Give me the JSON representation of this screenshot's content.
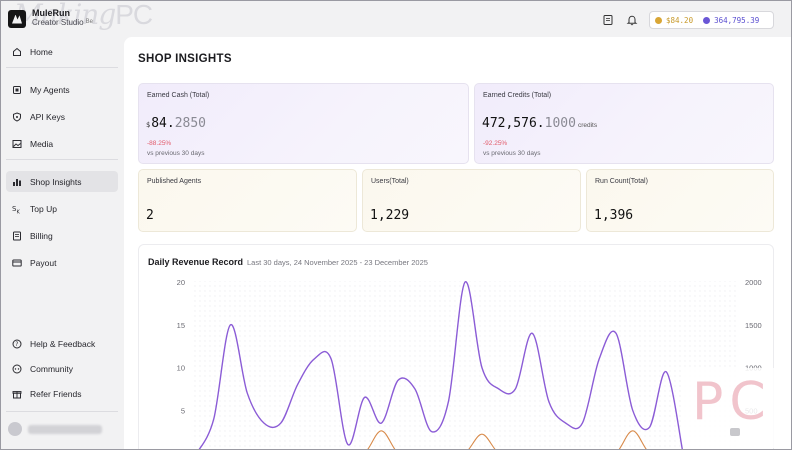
{
  "app": {
    "name": "MuleRun",
    "subtitle": "Creator Studio",
    "badge": "Be",
    "watermark_script": "Making",
    "watermark_bold": "PC"
  },
  "topbar": {
    "icons": [
      "document-icon",
      "bell-icon"
    ],
    "cash_balance": "$84.20",
    "credit_balance": "364,795.39"
  },
  "sidebar": {
    "items": [
      {
        "label": "Home",
        "icon": "home-icon"
      },
      {
        "label": "My Agents",
        "icon": "agent-icon"
      },
      {
        "label": "API Keys",
        "icon": "shield-icon"
      },
      {
        "label": "Media",
        "icon": "image-icon"
      },
      {
        "label": "Shop Insights",
        "icon": "bar-chart-icon",
        "active": true
      },
      {
        "label": "Top Up",
        "icon": "top-up-icon"
      },
      {
        "label": "Billing",
        "icon": "billing-icon"
      },
      {
        "label": "Payout",
        "icon": "payout-icon"
      }
    ],
    "footer_items": [
      {
        "label": "Help & Feedback",
        "icon": "help-icon"
      },
      {
        "label": "Community",
        "icon": "community-icon"
      },
      {
        "label": "Refer Friends",
        "icon": "gift-icon"
      }
    ]
  },
  "page": {
    "title": "SHOP INSIGHTS"
  },
  "cards": {
    "earned_cash": {
      "label": "Earned Cash (Total)",
      "currency": "$",
      "value_main": "84.",
      "value_dim": "2850",
      "change": "-88.25%",
      "compare": "vs previous 30 days"
    },
    "earned_credits": {
      "label": "Earned Credits (Total)",
      "value_main": "472,576.",
      "value_dim": "1000",
      "unit": "credits",
      "change": "-92.25%",
      "compare": "vs previous 30 days"
    },
    "published_agents": {
      "label": "Published Agents",
      "value": "2"
    },
    "users": {
      "label": "Users(Total)",
      "value": "1,229"
    },
    "run_count": {
      "label": "Run Count(Total)",
      "value": "1,396"
    }
  },
  "revenue_chart": {
    "title": "Daily Revenue Record",
    "subtitle": "Last 30 days, 24 November 2025 - 23 December 2025"
  },
  "colors": {
    "accent_purple": "#8b5cd6",
    "accent_orange": "#d88a4a",
    "negative": "#e25a6a"
  },
  "chart_data": {
    "type": "line",
    "title": "Daily Revenue Record",
    "y_left": {
      "ticks": [
        "20",
        "15",
        "10",
        "5"
      ],
      "ylim": [
        0,
        20
      ]
    },
    "y_right": {
      "ticks": [
        "2000",
        "1500",
        "1000",
        "500"
      ],
      "ylim": [
        0,
        2000
      ]
    },
    "grid": true,
    "series": [
      {
        "axis": "left",
        "color": "#8b5cd6",
        "x": [
          0,
          1,
          2,
          3,
          4,
          5,
          6,
          7,
          8,
          9,
          10,
          11,
          12,
          13,
          14,
          15,
          16,
          17,
          18,
          19,
          20,
          21,
          22,
          23,
          24,
          25,
          26,
          27,
          28,
          29
        ],
        "values": [
          0,
          4,
          15,
          7,
          3.5,
          3.5,
          8,
          11,
          11,
          1,
          6.5,
          3.5,
          8.5,
          7.5,
          2.5,
          6,
          20,
          10,
          7.5,
          7.5,
          14,
          6,
          3.5,
          3.5,
          11,
          14,
          5,
          3,
          9.5,
          0
        ]
      },
      {
        "axis": "right",
        "color": "#d88a4a",
        "x": [
          0,
          1,
          2,
          3,
          4,
          5,
          6,
          7,
          8,
          9,
          10,
          11,
          12,
          13,
          14,
          15,
          16,
          17,
          18,
          19,
          20,
          21,
          22,
          23,
          24,
          25,
          26,
          27,
          28,
          29
        ],
        "values": [
          0,
          0,
          0,
          0,
          0,
          0,
          0,
          0,
          0,
          0,
          0,
          260,
          0,
          0,
          0,
          0,
          0,
          220,
          0,
          0,
          0,
          0,
          0,
          0,
          0,
          0,
          260,
          0,
          0,
          0
        ]
      }
    ]
  }
}
